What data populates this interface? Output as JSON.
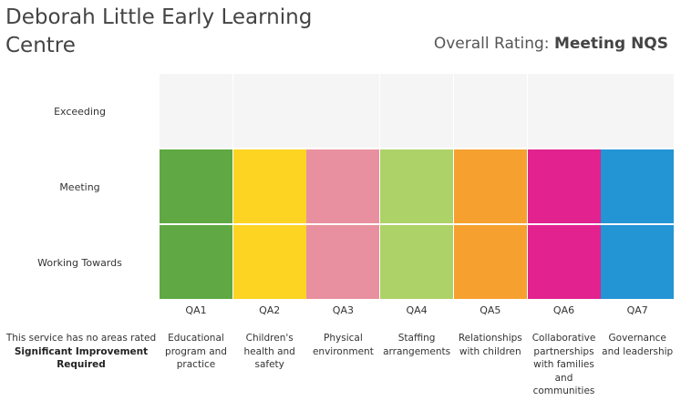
{
  "header": {
    "title": "Deborah Little Early Learning Centre",
    "overall_label": "Overall Rating:",
    "overall_value": "Meeting NQS"
  },
  "footer_note": {
    "line1": "This service has no areas rated",
    "line2": "Significant Improvement",
    "line3": "Required"
  },
  "chart_data": {
    "type": "table",
    "rows": [
      "Exceeding",
      "Meeting",
      "Working Towards"
    ],
    "columns": [
      {
        "code": "QA1",
        "label": "Educational program and practice",
        "rating": "Meeting",
        "color": "#5fa843"
      },
      {
        "code": "QA2",
        "label": "Children's health and safety",
        "rating": "Meeting",
        "color": "#fdd421"
      },
      {
        "code": "QA3",
        "label": "Physical environment",
        "rating": "Meeting",
        "color": "#e8909f"
      },
      {
        "code": "QA4",
        "label": "Staffing arrangements",
        "rating": "Meeting",
        "color": "#add268"
      },
      {
        "code": "QA5",
        "label": "Relationships with children",
        "rating": "Meeting",
        "color": "#f6a12f"
      },
      {
        "code": "QA6",
        "label": "Collaborative partnerships with families and communities",
        "rating": "Meeting",
        "color": "#e2228f"
      },
      {
        "code": "QA7",
        "label": "Governance and leadership",
        "rating": "Meeting",
        "color": "#2394d4"
      }
    ],
    "empty_color": "#f5f5f5"
  }
}
